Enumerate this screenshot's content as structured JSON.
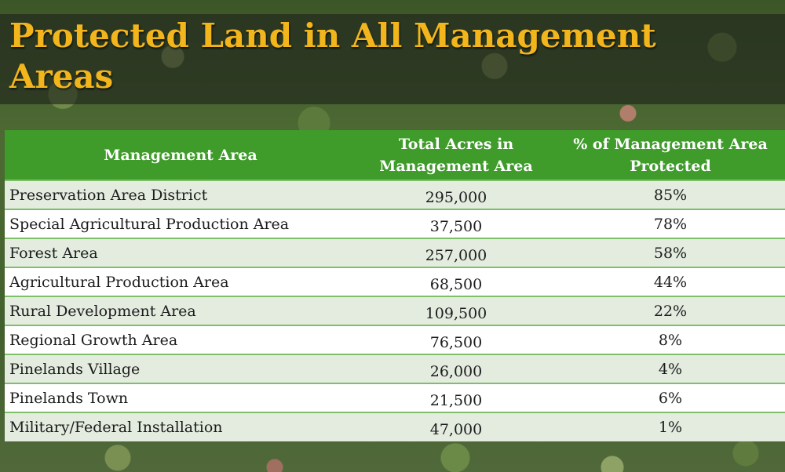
{
  "title": "Protected Land in All Management Areas",
  "table": {
    "headers": [
      "Management Area",
      "Total Acres in Management Area",
      "% of Management Area Protected"
    ],
    "rows": [
      {
        "area": "Preservation Area District",
        "acres": "295,000",
        "protected": "85%"
      },
      {
        "area": "Special Agricultural Production Area",
        "acres": "37,500",
        "protected": "78%"
      },
      {
        "area": "Forest Area",
        "acres": "257,000",
        "protected": "58%"
      },
      {
        "area": "Agricultural Production Area",
        "acres": "68,500",
        "protected": "44%"
      },
      {
        "area": "Rural Development Area",
        "acres": "109,500",
        "protected": "22%"
      },
      {
        "area": "Regional Growth Area",
        "acres": "76,500",
        "protected": "8%"
      },
      {
        "area": "Pinelands Village",
        "acres": "26,000",
        "protected": "4%"
      },
      {
        "area": "Pinelands Town",
        "acres": "21,500",
        "protected": "6%"
      },
      {
        "area": "Military/Federal Installation",
        "acres": "47,000",
        "protected": "1%"
      }
    ]
  },
  "colors": {
    "title": "#f2b51c",
    "header_bg": "#3f9b2a",
    "row_alt": "#e3ecdf"
  }
}
